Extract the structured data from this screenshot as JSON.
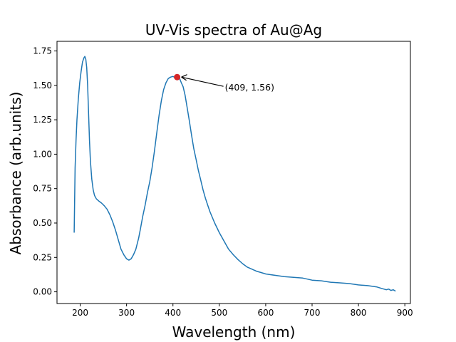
{
  "chart_data": {
    "type": "line",
    "title": "UV-Vis spectra of Au@Ag",
    "xlabel": "Wavelength (nm)",
    "ylabel": "Absorbance (arb.units)",
    "xlim": [
      150,
      912
    ],
    "ylim": [
      -0.085,
      1.82
    ],
    "xticks": [
      200,
      300,
      400,
      500,
      600,
      700,
      800,
      900
    ],
    "yticks": [
      0.0,
      0.25,
      0.5,
      0.75,
      1.0,
      1.25,
      1.5,
      1.75
    ],
    "xtick_labels": [
      "200",
      "300",
      "400",
      "500",
      "600",
      "700",
      "800",
      "900"
    ],
    "ytick_labels": [
      "0.00",
      "0.25",
      "0.50",
      "0.75",
      "1.00",
      "1.25",
      "1.50",
      "1.75"
    ],
    "grid": false,
    "series": [
      {
        "color": "#1f77b4",
        "x": [
          187,
          189,
          191,
          193,
          196,
          199,
          202,
          205,
          208,
          210,
          212,
          214,
          216,
          218,
          220,
          222,
          225,
          228,
          231,
          235,
          240,
          246,
          252,
          258,
          264,
          270,
          276,
          282,
          288,
          294,
          300,
          305,
          310,
          315,
          320,
          323,
          326,
          330,
          335,
          340,
          345,
          350,
          355,
          360,
          365,
          370,
          375,
          380,
          385,
          390,
          395,
          400,
          403,
          406,
          409,
          412,
          415,
          418,
          422,
          426,
          430,
          435,
          440,
          445,
          450,
          455,
          460,
          465,
          470,
          475,
          480,
          490,
          500,
          510,
          520,
          530,
          540,
          550,
          560,
          570,
          580,
          590,
          600,
          620,
          640,
          660,
          680,
          700,
          720,
          740,
          760,
          780,
          800,
          820,
          840,
          850,
          860,
          865,
          870,
          875,
          880
        ],
        "y": [
          0.43,
          0.9,
          1.1,
          1.25,
          1.4,
          1.52,
          1.6,
          1.67,
          1.7,
          1.71,
          1.69,
          1.63,
          1.5,
          1.3,
          1.1,
          0.95,
          0.82,
          0.74,
          0.7,
          0.675,
          0.66,
          0.645,
          0.625,
          0.6,
          0.56,
          0.51,
          0.45,
          0.38,
          0.31,
          0.27,
          0.24,
          0.23,
          0.24,
          0.27,
          0.31,
          0.35,
          0.39,
          0.46,
          0.55,
          0.63,
          0.72,
          0.8,
          0.9,
          1.02,
          1.15,
          1.28,
          1.39,
          1.47,
          1.52,
          1.55,
          1.56,
          1.565,
          1.56,
          1.56,
          1.56,
          1.555,
          1.545,
          1.52,
          1.49,
          1.43,
          1.35,
          1.25,
          1.14,
          1.04,
          0.96,
          0.88,
          0.81,
          0.74,
          0.68,
          0.63,
          0.58,
          0.5,
          0.43,
          0.37,
          0.31,
          0.27,
          0.235,
          0.205,
          0.18,
          0.165,
          0.15,
          0.14,
          0.13,
          0.12,
          0.11,
          0.105,
          0.1,
          0.085,
          0.08,
          0.07,
          0.065,
          0.06,
          0.05,
          0.045,
          0.035,
          0.025,
          0.015,
          0.02,
          0.01,
          0.015,
          0.005
        ]
      }
    ],
    "annotation": {
      "text": "(409, 1.56)",
      "point": [
        409,
        1.56
      ],
      "marker_color": "#d62728"
    }
  }
}
